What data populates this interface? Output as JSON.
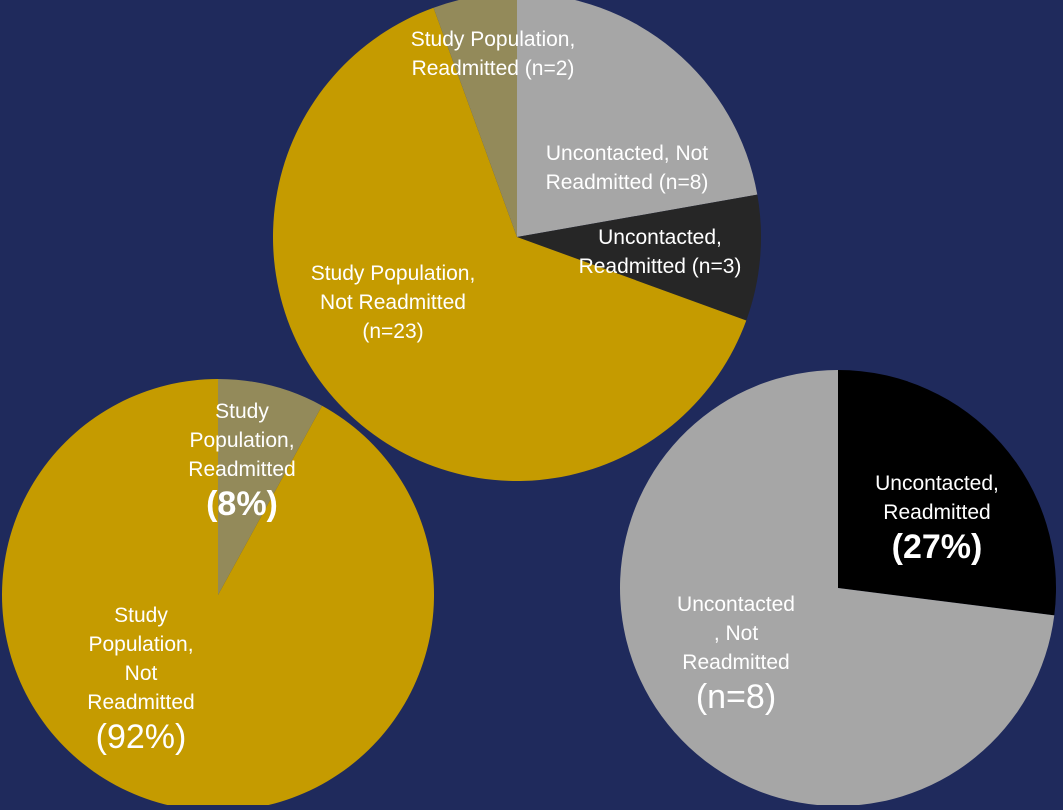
{
  "chart_data": [
    {
      "type": "pie",
      "start": "top",
      "direction": "clockwise",
      "slices": [
        {
          "label_lines": [
            "Uncontacted, Not",
            "Readmitted (n=8)"
          ],
          "value": 8,
          "color": "#a6a6a6",
          "text_color": "#ffffff"
        },
        {
          "label_lines": [
            "Uncontacted,",
            "Readmitted (n=3)"
          ],
          "value": 3,
          "color": "#262626",
          "text_color": "#ffffff"
        },
        {
          "label_lines": [
            "Study Population,",
            "Not Readmitted",
            "(n=23)"
          ],
          "value": 23,
          "color": "#c59b00",
          "text_color": "#ffffff"
        },
        {
          "label_lines": [
            "Study Population,",
            "Readmitted (n=2)"
          ],
          "value": 2,
          "color": "#938a5a",
          "text_color": "#ffffff"
        }
      ]
    },
    {
      "type": "pie",
      "start": "top",
      "direction": "clockwise",
      "slices": [
        {
          "label_lines": [
            "Study",
            "Population,",
            "Readmitted"
          ],
          "percent_text": "(8%)",
          "value": 8,
          "color": "#938a5a",
          "text_color": "#ffffff"
        },
        {
          "label_lines": [
            "Study",
            "Population,",
            "Not",
            "Readmitted"
          ],
          "percent_text": "(92%)",
          "value": 92,
          "color": "#c59b00",
          "text_color": "#ffffff"
        }
      ]
    },
    {
      "type": "pie",
      "start": "top",
      "direction": "clockwise",
      "slices": [
        {
          "label_lines": [
            "Uncontacted,",
            "Readmitted"
          ],
          "percent_text": "(27%)",
          "value": 27,
          "color": "#000000",
          "text_color": "#ffffff"
        },
        {
          "label_lines": [
            "Uncontacted",
            ", Not",
            "Readmitted"
          ],
          "percent_text": "(n=8)",
          "value": 73,
          "color": "#a6a6a6",
          "text_color": "#ffffff"
        }
      ]
    }
  ]
}
